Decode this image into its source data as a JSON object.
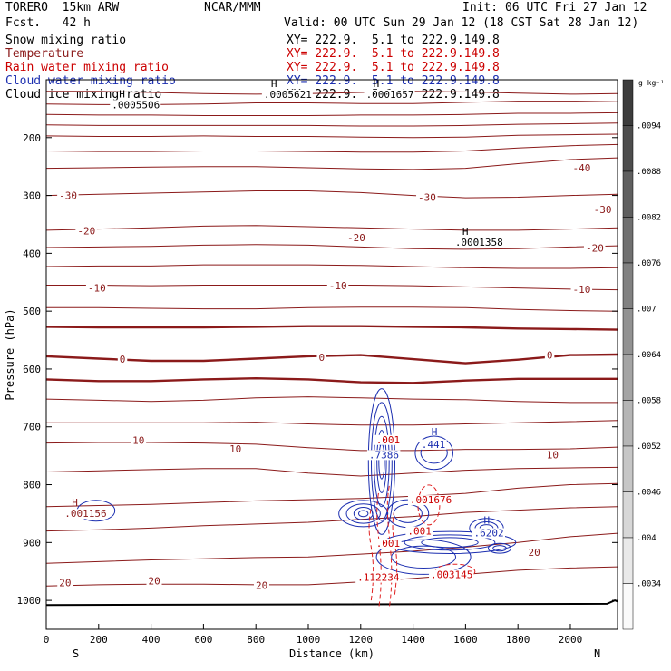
{
  "header": {
    "model": "TORERO  15km ARW",
    "fcst": "Fcst.   42 h",
    "org": "NCAR/MMM",
    "init": "Init: 06 UTC Fri 27 Jan 12",
    "valid": "Valid: 00 UTC Sun 29 Jan 12 (18 CST Sat 28 Jan 12)"
  },
  "fields": [
    {
      "name": "Snow mixing ratio",
      "xy": "XY= 222.9.  5.1 to 222.9.149.8",
      "color": "#000000"
    },
    {
      "name": "Temperature",
      "xy": "XY= 222.9.  5.1 to 222.9.149.8",
      "color": "#8b1a1a"
    },
    {
      "name": "Rain water mixing ratio",
      "xy": "XY= 222.9.  5.1 to 222.9.149.8",
      "color": "#cc0000"
    },
    {
      "name": "Cloud water mixing ratio",
      "xy": "XY= 222.9.  5.1 to 222.9.149.8",
      "color": "#1c2fb0"
    },
    {
      "name": "Cloud ice mixing ratio",
      "xy": "XY= 222.9.  5.1 to 222.9.149.8",
      "color": "#000000"
    }
  ],
  "chart_data": {
    "type": "contour",
    "xlabel": "Distance (km)",
    "ylabel": "Pressure (hPa)",
    "xlim": [
      0,
      2180
    ],
    "ylim": [
      1050,
      100
    ],
    "xticks": [
      0,
      200,
      400,
      600,
      800,
      1000,
      1200,
      1400,
      1600,
      1800,
      2000
    ],
    "yticks": [
      200,
      300,
      400,
      500,
      600,
      700,
      800,
      900,
      1000
    ],
    "end_labels": {
      "left": "S",
      "right": "N"
    },
    "temperature_contours": [
      {
        "value": -40,
        "pressures": [
          120,
          120,
          122,
          124,
          125,
          124,
          122,
          120,
          121,
          123,
          125,
          124
        ]
      },
      {
        "value": -40,
        "pressures": [
          142,
          143,
          143,
          142,
          140,
          140,
          141,
          141,
          139,
          137,
          137,
          138
        ]
      },
      {
        "value": -40,
        "pressures": [
          160,
          161,
          161,
          162,
          162,
          162,
          161,
          161,
          160,
          158,
          158,
          157
        ]
      },
      {
        "value": -40,
        "pressures": [
          178,
          179,
          179,
          179,
          179,
          179,
          180,
          180,
          179,
          177,
          176,
          175
        ]
      },
      {
        "value": -40,
        "pressures": [
          197,
          198,
          198,
          197,
          198,
          198,
          199,
          200,
          199,
          196,
          195,
          194
        ]
      },
      {
        "value": -40,
        "pressures": [
          223,
          224,
          224,
          223,
          223,
          224,
          225,
          225,
          223,
          218,
          214,
          212
        ]
      },
      {
        "value": -40,
        "pressures": [
          253,
          252,
          251,
          250,
          250,
          252,
          254,
          255,
          253,
          245,
          238,
          235
        ]
      },
      {
        "value": -30,
        "pressures": [
          300,
          298,
          296,
          294,
          292,
          292,
          295,
          300,
          304,
          303,
          300,
          298
        ]
      },
      {
        "value": -20,
        "pressures": [
          360,
          358,
          356,
          353,
          352,
          354,
          356,
          358,
          360,
          360,
          358,
          356
        ]
      },
      {
        "value": -20,
        "pressures": [
          390,
          389,
          388,
          386,
          385,
          386,
          389,
          392,
          393,
          392,
          389,
          387
        ]
      },
      {
        "value": -10,
        "pressures": [
          423,
          422,
          422,
          420,
          420,
          420,
          421,
          423,
          425,
          426,
          426,
          425
        ]
      },
      {
        "value": -10,
        "pressures": [
          455,
          455,
          456,
          455,
          455,
          455,
          455,
          456,
          458,
          460,
          462,
          463
        ]
      },
      {
        "value": -10,
        "pressures": [
          494,
          494,
          495,
          496,
          496,
          494,
          493,
          493,
          494,
          497,
          499,
          500
        ]
      },
      {
        "value": 0,
        "pressures": [
          527,
          528,
          528,
          528,
          527,
          526,
          526,
          527,
          528,
          530,
          531,
          532
        ]
      },
      {
        "value": 0,
        "pressures": [
          578,
          582,
          586,
          586,
          582,
          578,
          576,
          583,
          590,
          584,
          576,
          575
        ]
      },
      {
        "value": 0,
        "pressures": [
          618,
          621,
          621,
          618,
          616,
          618,
          623,
          624,
          620,
          617,
          617,
          617
        ]
      },
      {
        "value": 10,
        "pressures": [
          652,
          654,
          656,
          654,
          650,
          648,
          650,
          652,
          653,
          656,
          658,
          658
        ]
      },
      {
        "value": 10,
        "pressures": [
          693,
          693,
          693,
          693,
          692,
          695,
          697,
          697,
          695,
          693,
          691,
          689
        ]
      },
      {
        "value": 10,
        "pressures": [
          728,
          727,
          727,
          728,
          730,
          736,
          741,
          741,
          739,
          739,
          738,
          735
        ]
      },
      {
        "value": 10,
        "pressures": [
          778,
          776,
          774,
          772,
          772,
          780,
          785,
          780,
          775,
          772,
          771,
          770
        ]
      },
      {
        "value": 20,
        "pressures": [
          838,
          836,
          834,
          831,
          828,
          826,
          824,
          820,
          815,
          806,
          800,
          798
        ]
      },
      {
        "value": 20,
        "pressures": [
          880,
          878,
          875,
          871,
          868,
          865,
          860,
          855,
          848,
          844,
          840,
          838
        ]
      },
      {
        "value": 20,
        "pressures": [
          936,
          933,
          930,
          928,
          926,
          925,
          920,
          915,
          908,
          900,
          890,
          884
        ]
      },
      {
        "value": 20,
        "pressures": [
          975,
          973,
          972,
          972,
          973,
          973,
          968,
          962,
          955,
          948,
          944,
          942
        ]
      }
    ],
    "temperature_x": [
      0,
      200,
      400,
      600,
      800,
      1000,
      1200,
      1400,
      1600,
      1800,
      2000,
      2180
    ],
    "temperature_labels": [
      {
        "text": "-40",
        "x": 2040,
        "p": 252
      },
      {
        "text": "-30",
        "x": 80,
        "p": 300
      },
      {
        "text": "-30",
        "x": 1450,
        "p": 303
      },
      {
        "text": "-30",
        "x": 2120,
        "p": 324
      },
      {
        "text": "-20",
        "x": 150,
        "p": 361
      },
      {
        "text": "-20",
        "x": 1180,
        "p": 373
      },
      {
        "text": "-20",
        "x": 2090,
        "p": 391
      },
      {
        "text": "-10",
        "x": 190,
        "p": 460
      },
      {
        "text": "-10",
        "x": 1110,
        "p": 456
      },
      {
        "text": "-10",
        "x": 2040,
        "p": 462
      },
      {
        "text": "0",
        "x": 290,
        "p": 583
      },
      {
        "text": "0",
        "x": 1050,
        "p": 580
      },
      {
        "text": "0",
        "x": 1920,
        "p": 576
      },
      {
        "text": "10",
        "x": 350,
        "p": 723
      },
      {
        "text": "10",
        "x": 720,
        "p": 738
      },
      {
        "text": "10",
        "x": 1930,
        "p": 748
      },
      {
        "text": "20",
        "x": 70,
        "p": 969
      },
      {
        "text": "20",
        "x": 410,
        "p": 966
      },
      {
        "text": "20",
        "x": 820,
        "p": 974
      },
      {
        "text": "20",
        "x": 1860,
        "p": 917
      }
    ],
    "cloud_water_centers": [
      {
        "x": 1280,
        "p": 760,
        "label": ".7386",
        "h_p": 748
      },
      {
        "x": 1480,
        "p": 745,
        "label": ".441",
        "h_p": 730
      },
      {
        "x": 1680,
        "p": 875,
        "label": ".6202",
        "h_p": 883
      }
    ],
    "rain_water_labels": [
      {
        "text": ".001",
        "x": 1300,
        "p": 722
      },
      {
        "text": ".001676",
        "x": 1460,
        "p": 826
      },
      {
        "text": ".001",
        "x": 1420,
        "p": 880
      },
      {
        "text": ".001",
        "x": 1300,
        "p": 901
      },
      {
        "text": ".112234",
        "x": 1260,
        "p": 960
      },
      {
        "text": ".003145",
        "x": 1540,
        "p": 955
      }
    ],
    "extrema_labels": [
      {
        "text": ".0005506",
        "x": 250,
        "p": 149,
        "color": "#000000"
      },
      {
        "text": ".0005621",
        "x": 830,
        "p": 131,
        "color": "#000000"
      },
      {
        "text": ".0001657",
        "x": 1220,
        "p": 131,
        "color": "#000000"
      },
      {
        "text": ".0001358",
        "x": 1560,
        "p": 387,
        "color": "#000000"
      },
      {
        "text": ".001156",
        "x": 70,
        "p": 856,
        "color": "#8b1a1a"
      }
    ],
    "colorbar": {
      "unit": "g kg⁻¹",
      "labels": [
        ".0094",
        ".0088",
        ".0082",
        ".0076",
        ".007",
        ".0064",
        ".0058",
        ".0052",
        ".0046",
        ".004",
        ".0034"
      ]
    }
  }
}
